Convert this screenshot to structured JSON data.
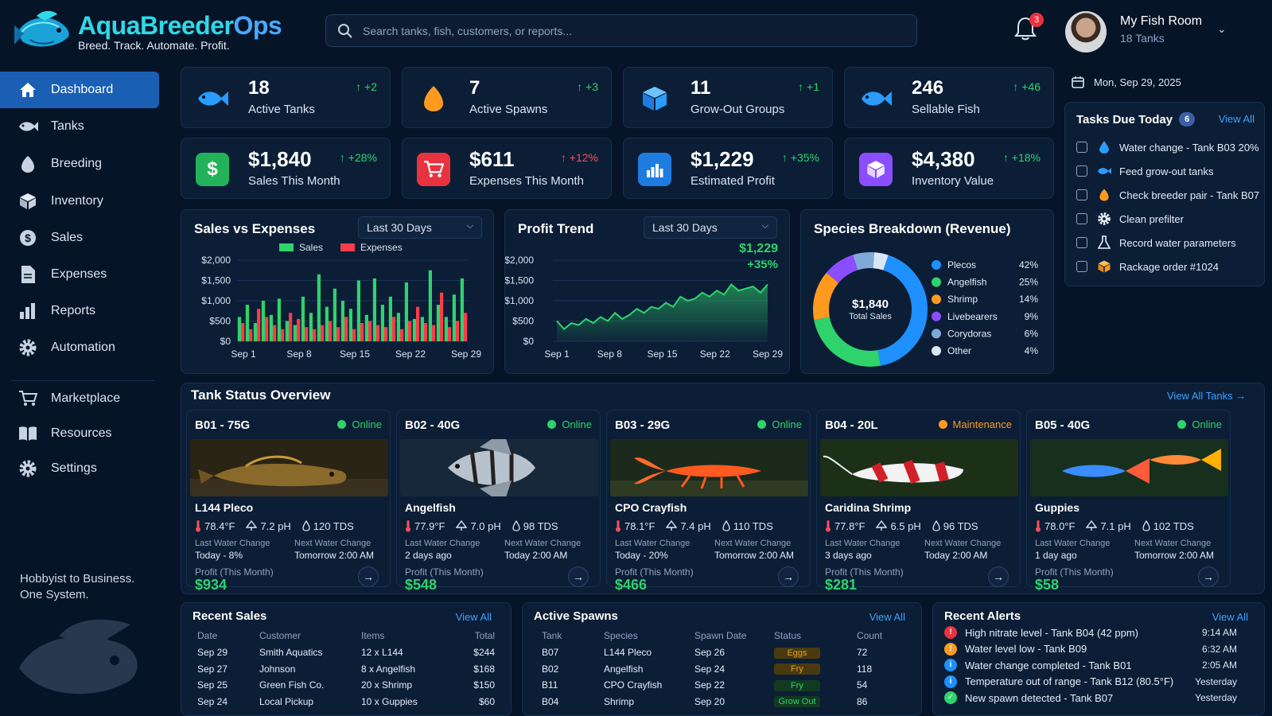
{
  "brand": {
    "name_part1": "AquaBreeder",
    "name_part2": "Ops",
    "tagline": "Breed. Track. Automate. Profit."
  },
  "search": {
    "placeholder": "Search tanks, fish, customers, or reports..."
  },
  "notifications": {
    "count": "3"
  },
  "profile": {
    "name": "My Fish Room",
    "subtitle": "18 Tanks"
  },
  "sidebar": {
    "items": [
      {
        "label": "Dashboard",
        "icon": "home-icon"
      },
      {
        "label": "Tanks",
        "icon": "fish-icon"
      },
      {
        "label": "Breeding",
        "icon": "egg-icon"
      },
      {
        "label": "Inventory",
        "icon": "box-icon"
      },
      {
        "label": "Sales",
        "icon": "dollar-icon"
      },
      {
        "label": "Expenses",
        "icon": "document-icon"
      },
      {
        "label": "Reports",
        "icon": "bar-chart-icon"
      },
      {
        "label": "Automation",
        "icon": "gear-icon"
      },
      {
        "label": "Marketplace",
        "icon": "cart-icon"
      },
      {
        "label": "Resources",
        "icon": "book-icon"
      },
      {
        "label": "Settings",
        "icon": "gear-icon"
      }
    ],
    "tagline_line1": "Hobbyist to Business.",
    "tagline_line2": "One System."
  },
  "stats_row1": [
    {
      "value": "18",
      "label": "Active Tanks",
      "delta": "+2",
      "icon": "fish-icon"
    },
    {
      "value": "7",
      "label": "Active Spawns",
      "delta": "+3",
      "icon": "egg-icon"
    },
    {
      "value": "11",
      "label": "Grow-Out Groups",
      "delta": "+1",
      "icon": "cube-icon"
    },
    {
      "value": "246",
      "label": "Sellable Fish",
      "delta": "+46",
      "icon": "fish-icon"
    }
  ],
  "stats_row2": [
    {
      "value": "$1,840",
      "label": "Sales This Month",
      "delta": "+28%",
      "icon": "dollar-icon"
    },
    {
      "value": "$611",
      "label": "Expenses This Month",
      "delta": "+12%",
      "icon": "cart-icon"
    },
    {
      "value": "$1,229",
      "label": "Estimated Profit",
      "delta": "+35%",
      "icon": "bar-chart-icon"
    },
    {
      "value": "$4,380",
      "label": "Inventory Value",
      "delta": "+18%",
      "icon": "box-icon"
    }
  ],
  "date": "Mon, Sep 29, 2025",
  "tasks": {
    "title": "Tasks Due Today",
    "count": "6",
    "view_all": "View All",
    "items": [
      {
        "label": "Water change - Tank B03 20%",
        "icon": "drop-icon"
      },
      {
        "label": "Feed grow-out tanks",
        "icon": "fish-icon"
      },
      {
        "label": "Check breeder pair - Tank B07",
        "icon": "egg-icon"
      },
      {
        "label": "Clean prefilter",
        "icon": "gear-icon"
      },
      {
        "label": "Record water parameters",
        "icon": "flask-icon"
      },
      {
        "label": "Rackage order #1024",
        "icon": "box-icon"
      }
    ]
  },
  "sales_chart": {
    "title": "Sales vs Expenses",
    "range": "Last 30 Days",
    "legend_sales": "Sales",
    "legend_expenses": "Expenses"
  },
  "profit_chart": {
    "title": "Profit Trend",
    "range": "Last 30 Days",
    "value": "$1,229",
    "delta": "+35%"
  },
  "species_chart": {
    "title": "Species Breakdown (Revenue)",
    "center_value": "$1,840",
    "center_label": "Total Sales"
  },
  "chart_data": [
    {
      "type": "bar",
      "categories": [
        "Sep 1",
        "Sep 2",
        "Sep 3",
        "Sep 4",
        "Sep 5",
        "Sep 6",
        "Sep 7",
        "Sep 8",
        "Sep 9",
        "Sep 10",
        "Sep 11",
        "Sep 12",
        "Sep 13",
        "Sep 14",
        "Sep 15",
        "Sep 16",
        "Sep 17",
        "Sep 18",
        "Sep 19",
        "Sep 20",
        "Sep 21",
        "Sep 22",
        "Sep 23",
        "Sep 24",
        "Sep 25",
        "Sep 26",
        "Sep 27",
        "Sep 28",
        "Sep 29"
      ],
      "x_ticks": [
        "Sep 1",
        "Sep 8",
        "Sep 15",
        "Sep 22",
        "Sep 29"
      ],
      "y_ticks": [
        "$0",
        "$500",
        "$1,000",
        "$1,500",
        "$2,000"
      ],
      "ylim": [
        0,
        2000
      ],
      "series": [
        {
          "name": "Sales",
          "color": "#2fd36b",
          "values": [
            600,
            900,
            450,
            1000,
            650,
            1050,
            500,
            400,
            1100,
            700,
            1650,
            850,
            1300,
            1000,
            800,
            1500,
            650,
            1550,
            900,
            1100,
            700,
            1450,
            550,
            600,
            1750,
            900,
            600,
            1150,
            1550
          ]
        },
        {
          "name": "Expenses",
          "color": "#ff3b4a",
          "values": [
            450,
            300,
            800,
            600,
            400,
            300,
            700,
            550,
            350,
            300,
            400,
            500,
            350,
            600,
            300,
            450,
            500,
            400,
            350,
            600,
            300,
            500,
            850,
            450,
            400,
            1200,
            350,
            500,
            700
          ]
        }
      ]
    },
    {
      "type": "area",
      "x_ticks": [
        "Sep 1",
        "Sep 8",
        "Sep 15",
        "Sep 22",
        "Sep 29"
      ],
      "y_ticks": [
        "$0",
        "$500",
        "$1,000",
        "$1,500",
        "$2,000"
      ],
      "ylim": [
        0,
        2000
      ],
      "series": [
        {
          "name": "Profit",
          "color": "#2fd36b",
          "values": [
            500,
            300,
            450,
            400,
            550,
            450,
            600,
            500,
            700,
            550,
            650,
            800,
            700,
            850,
            800,
            950,
            850,
            1100,
            1000,
            1050,
            1200,
            1100,
            1250,
            1150,
            1400,
            1250,
            1300,
            1350,
            1200,
            1400
          ]
        }
      ]
    },
    {
      "type": "pie",
      "slices": [
        {
          "label": "Plecos",
          "value": 42,
          "display": "42%",
          "color": "#1e90ff"
        },
        {
          "label": "Angelfish",
          "value": 25,
          "display": "25%",
          "color": "#2fd36b"
        },
        {
          "label": "Shrimp",
          "value": 14,
          "display": "14%",
          "color": "#ff9a1f"
        },
        {
          "label": "Livebearers",
          "value": 9,
          "display": "9%",
          "color": "#8a4dff"
        },
        {
          "label": "Corydoras",
          "value": 6,
          "display": "6%",
          "color": "#7fa9d9"
        },
        {
          "label": "Other",
          "value": 4,
          "display": "4%",
          "color": "#dbe6f5"
        }
      ]
    }
  ],
  "tank_overview": {
    "title": "Tank Status Overview",
    "view_all": "View All Tanks →"
  },
  "tanks": [
    {
      "name": "B01 - 75G",
      "status": "Online",
      "status_color": "#2fd36b",
      "species": "L144 Pleco",
      "temp": "78.4°F",
      "ph": "7.2 pH",
      "tds": "120 TDS",
      "lwc_label": "Last Water Change",
      "lwc": "Today - 8%",
      "nwc_label": "Next Water Change",
      "nwc": "Tomorrow 2:00 AM",
      "profit_label": "Profit (This Month)",
      "profit": "$934"
    },
    {
      "name": "B02 - 40G",
      "status": "Online",
      "status_color": "#2fd36b",
      "species": "Angelfish",
      "temp": "77.9°F",
      "ph": "7.0 pH",
      "tds": "98 TDS",
      "lwc_label": "Last Water Change",
      "lwc": "2 days ago",
      "nwc_label": "Next Water Change",
      "nwc": "Today 2:00 AM",
      "profit_label": "Profit (This Month)",
      "profit": "$548"
    },
    {
      "name": "B03 - 29G",
      "status": "Online",
      "status_color": "#2fd36b",
      "species": "CPO Crayfish",
      "temp": "78.1°F",
      "ph": "7.4 pH",
      "tds": "110 TDS",
      "lwc_label": "Last Water Change",
      "lwc": "Today - 20%",
      "nwc_label": "Next Water Change",
      "nwc": "Tomorrow 2:00 AM",
      "profit_label": "Profit (This Month)",
      "profit": "$466"
    },
    {
      "name": "B04 - 20L",
      "status": "Maintenance",
      "status_color": "#ff9a1f",
      "species": "Caridina Shrimp",
      "temp": "77.8°F",
      "ph": "6.5 pH",
      "tds": "96 TDS",
      "lwc_label": "Last Water Change",
      "lwc": "3 days ago",
      "nwc_label": "Next Water Change",
      "nwc": "Today 2:00 AM",
      "profit_label": "Profit (This Month)",
      "profit": "$281"
    },
    {
      "name": "B05 - 40G",
      "status": "Online",
      "status_color": "#2fd36b",
      "species": "Guppies",
      "temp": "78.0°F",
      "ph": "7.1 pH",
      "tds": "102 TDS",
      "lwc_label": "Last Water Change",
      "lwc": "1 day ago",
      "nwc_label": "Next Water Change",
      "nwc": "Tomorrow 2:00 AM",
      "profit_label": "Profit (This Month)",
      "profit": "$58"
    }
  ],
  "recent_sales": {
    "title": "Recent Sales",
    "view_all": "View All",
    "headers": [
      "Date",
      "Customer",
      "Items",
      "Total"
    ],
    "rows": [
      [
        "Sep 29",
        "Smith Aquatics",
        "12 x L144",
        "$244"
      ],
      [
        "Sep 27",
        "Johnson",
        "8 x Angelfish",
        "$168"
      ],
      [
        "Sep 25",
        "Green Fish Co.",
        "20 x Shrimp",
        "$150"
      ],
      [
        "Sep 24",
        "Local Pickup",
        "10 x Guppies",
        "$60"
      ]
    ]
  },
  "active_spawns": {
    "title": "Active Spawns",
    "view_all": "View All",
    "headers": [
      "Tank",
      "Species",
      "Spawn Date",
      "Status",
      "Count"
    ],
    "rows": [
      {
        "tank": "B07",
        "species": "L144 Pleco",
        "date": "Sep 26",
        "status": "Eggs",
        "status_color": "#e0a020",
        "status_bg": "#4a3a10",
        "count": "72"
      },
      {
        "tank": "B02",
        "species": "Angelfish",
        "date": "Sep 24",
        "status": "Fry",
        "status_color": "#e0a020",
        "status_bg": "#4a3a10",
        "count": "118"
      },
      {
        "tank": "B11",
        "species": "CPO Crayfish",
        "date": "Sep 22",
        "status": "Fry",
        "status_color": "#2fd36b",
        "status_bg": "#123a22",
        "count": "54"
      },
      {
        "tank": "B04",
        "species": "Shrimp",
        "date": "Sep 20",
        "status": "Grow Out",
        "status_color": "#2fd36b",
        "status_bg": "#123a22",
        "count": "86"
      }
    ]
  },
  "recent_alerts": {
    "title": "Recent Alerts",
    "view_all": "View All",
    "items": [
      {
        "text": "High nitrate level - Tank B04 (42 ppm)",
        "time": "9:14 AM",
        "color": "#e8333f",
        "glyph": "!"
      },
      {
        "text": "Water level low - Tank B09",
        "time": "6:32 AM",
        "color": "#ff9a1f",
        "glyph": "!"
      },
      {
        "text": "Water change completed - Tank B01",
        "time": "2:05 AM",
        "color": "#1e90ff",
        "glyph": "i"
      },
      {
        "text": "Temperature out of range - Tank B12 (80.5°F)",
        "time": "Yesterday",
        "color": "#1e90ff",
        "glyph": "i"
      },
      {
        "text": "New spawn detected - Tank B07",
        "time": "Yesterday",
        "color": "#2fd36b",
        "glyph": "✓"
      }
    ]
  }
}
